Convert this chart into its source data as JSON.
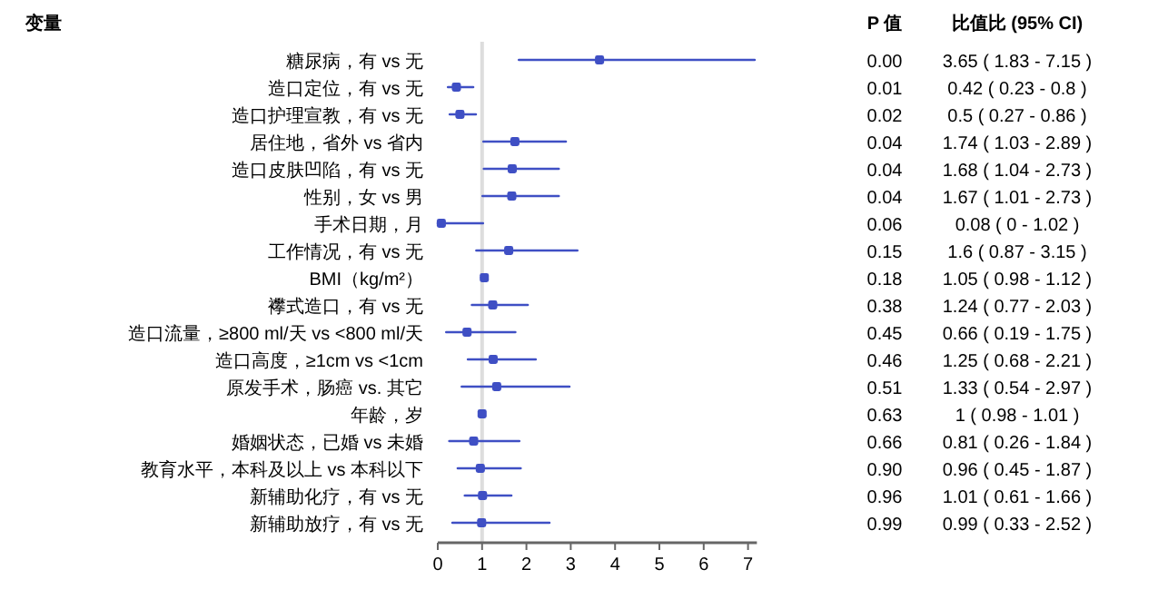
{
  "chart_data": [
    {
      "type": "scatter",
      "orientation": "horizontal",
      "ylabel": "变量",
      "marker": "square",
      "grid": false,
      "categories": [
        "糖尿病，有 vs 无",
        "造口定位，有 vs 无",
        "造口护理宣教，有 vs 无",
        "居住地，省外 vs 省内",
        "造口皮肤凹陷，有 vs 无",
        "性别，女 vs 男",
        "手术日期，月",
        "工作情况，有 vs 无",
        "BMI（kg/m²）",
        "襻式造口，有 vs 无",
        "造口流量，≥800 ml/天 vs <800 ml/天",
        "造口高度，≥1cm vs <1cm",
        "原发手术，肠癌 vs. 其它",
        "年龄，岁",
        "婚姻状态，已婚 vs 未婚",
        "教育水平，本科及以上 vs 本科以下",
        "新辅助化疗，有 vs 无",
        "新辅助放疗，有 vs 无"
      ],
      "series": [
        {
          "color": "#3f4fc4",
          "values": [
            3.65,
            0.42,
            0.5,
            1.74,
            1.68,
            1.67,
            0.08,
            1.6,
            1.05,
            1.24,
            0.66,
            1.25,
            1.33,
            1,
            0.81,
            0.96,
            1.01,
            0.99
          ],
          "errors": [
            [
              1.83,
              7.15
            ],
            [
              0.23,
              0.8
            ],
            [
              0.27,
              0.86
            ],
            [
              1.03,
              2.89
            ],
            [
              1.04,
              2.73
            ],
            [
              1.01,
              2.73
            ],
            [
              0,
              1.02
            ],
            [
              0.87,
              3.15
            ],
            [
              0.98,
              1.12
            ],
            [
              0.77,
              2.03
            ],
            [
              0.19,
              1.75
            ],
            [
              0.68,
              2.21
            ],
            [
              0.54,
              2.97
            ],
            null,
            [
              0.26,
              1.84
            ],
            [
              0.45,
              1.87
            ],
            [
              0.61,
              1.66
            ],
            [
              0.33,
              2.52
            ]
          ]
        }
      ],
      "xlim": [
        0,
        7.2
      ],
      "xticks": [
        0,
        1,
        2,
        3,
        4,
        5,
        6,
        7
      ],
      "ref_lines": [
        {
          "axis": "x",
          "value": 1,
          "color": "#dddddd"
        }
      ],
      "value_labels": [
        "3.65 ( 1.83 - 7.15 )",
        "0.42 ( 0.23 - 0.8 )",
        "0.5 ( 0.27 - 0.86 )",
        "1.74 ( 1.03 - 2.89 )",
        "1.68 ( 1.04 - 2.73 )",
        "1.67 ( 1.01 - 2.73 )",
        "0.08 ( 0 - 1.02 )",
        "1.6 ( 0.87 - 3.15 )",
        "1.05 ( 0.98 - 1.12 )",
        "1.24 ( 0.77 - 2.03 )",
        "0.66 ( 0.19 - 1.75 )",
        "1.25 ( 0.68 - 2.21 )",
        "1.33 ( 0.54 - 2.97 )",
        "1 ( 0.98 - 1.01 )",
        "0.81 ( 0.26 - 1.84 )",
        "0.96 ( 0.45 - 1.87 )",
        "1.01 ( 0.61 - 1.66 )",
        "0.99 ( 0.33 - 2.52 )"
      ]
    },
    {
      "type": "other",
      "title": "P 值",
      "annotations": [
        "0.00",
        "0.01",
        "0.02",
        "0.04",
        "0.04",
        "0.04",
        "0.06",
        "0.15",
        "0.18",
        "0.38",
        "0.45",
        "0.46",
        "0.51",
        "0.63",
        "0.66",
        "0.90",
        "0.96",
        "0.99"
      ]
    },
    {
      "type": "other",
      "title": "比值比 (95% CI)"
    }
  ]
}
